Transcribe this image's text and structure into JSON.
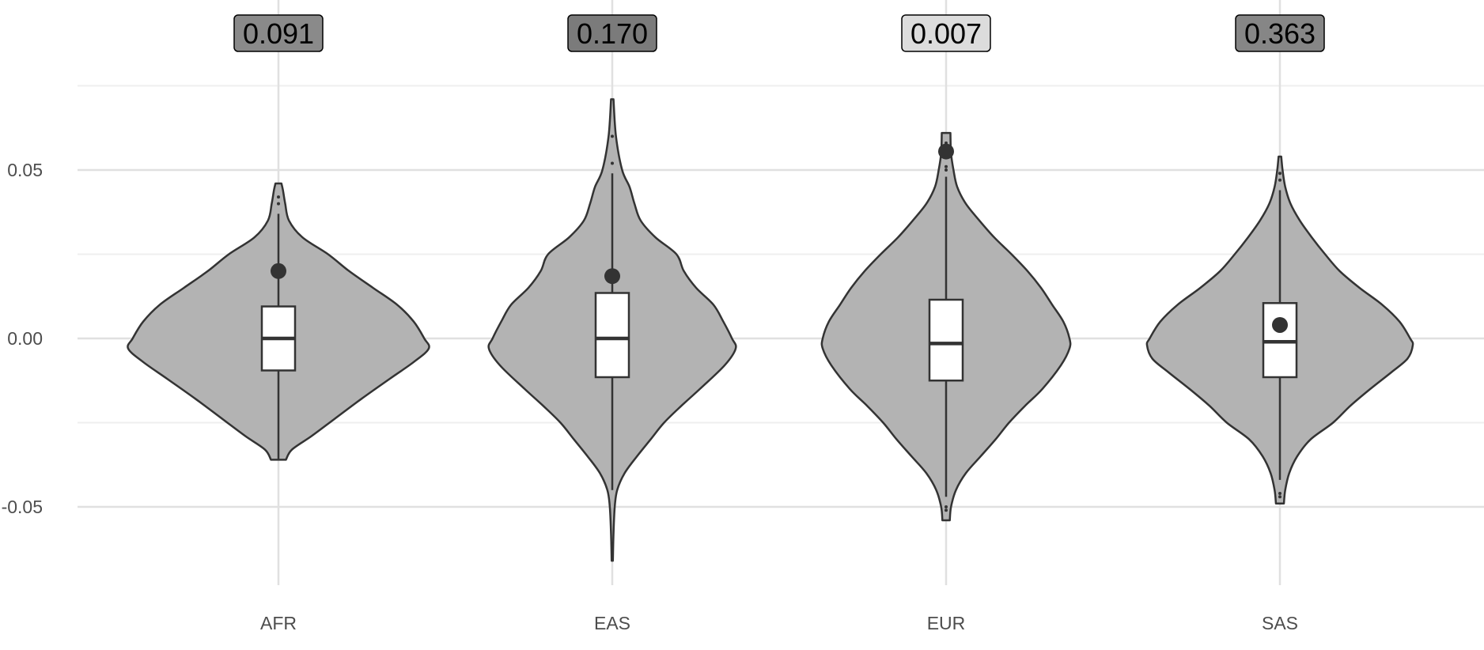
{
  "chart_data": {
    "type": "violin",
    "title": "",
    "xlabel": "",
    "ylabel": "",
    "grid": true,
    "ylim": [
      -0.074,
      0.101
    ],
    "y_ticks": [
      -0.05,
      0.0,
      0.05
    ],
    "y_tick_labels": [
      "-0.05",
      "0.00",
      "0.05"
    ],
    "categories": [
      "AFR",
      "EAS",
      "EUR",
      "SAS"
    ],
    "colors": {
      "violin_fill": "#b3b3b3",
      "outline": "#333333",
      "box_fill": "#ffffff",
      "grid_major": "#e0e0e0",
      "grid_minor": "#efefef",
      "axis_text": "#4d4d4d"
    },
    "groups": [
      {
        "name": "AFR",
        "p_value": "0.091",
        "label_fill": "#8a8a8a",
        "box": {
          "q1": -0.0095,
          "median": 0.0,
          "q3": 0.0095,
          "whisker_low": -0.036,
          "whisker_high": 0.037
        },
        "highlight_point": 0.02,
        "violin_range": [
          -0.036,
          0.046
        ],
        "density": [
          [
            0.046,
            0.02
          ],
          [
            0.044,
            0.03
          ],
          [
            0.04,
            0.045
          ],
          [
            0.035,
            0.07
          ],
          [
            0.03,
            0.16
          ],
          [
            0.025,
            0.33
          ],
          [
            0.02,
            0.47
          ],
          [
            0.015,
            0.63
          ],
          [
            0.01,
            0.79
          ],
          [
            0.005,
            0.9
          ],
          [
            0.0,
            0.97
          ],
          [
            -0.003,
            1.0
          ],
          [
            -0.007,
            0.9
          ],
          [
            -0.012,
            0.74
          ],
          [
            -0.018,
            0.55
          ],
          [
            -0.024,
            0.37
          ],
          [
            -0.029,
            0.22
          ],
          [
            -0.033,
            0.09
          ],
          [
            -0.036,
            0.05
          ]
        ],
        "outliers": [
          0.04,
          0.042
        ]
      },
      {
        "name": "EAS",
        "p_value": "0.170",
        "label_fill": "#7b7b7b",
        "box": {
          "q1": -0.0115,
          "median": 0.0,
          "q3": 0.0135,
          "whisker_low": -0.045,
          "whisker_high": 0.049
        },
        "highlight_point": 0.0185,
        "violin_range": [
          -0.066,
          0.071
        ],
        "density": [
          [
            0.071,
            0.01
          ],
          [
            0.06,
            0.03
          ],
          [
            0.05,
            0.08
          ],
          [
            0.045,
            0.14
          ],
          [
            0.04,
            0.18
          ],
          [
            0.035,
            0.23
          ],
          [
            0.03,
            0.35
          ],
          [
            0.025,
            0.52
          ],
          [
            0.02,
            0.58
          ],
          [
            0.015,
            0.68
          ],
          [
            0.01,
            0.82
          ],
          [
            0.005,
            0.9
          ],
          [
            0.0,
            0.97
          ],
          [
            -0.003,
            1.0
          ],
          [
            -0.008,
            0.91
          ],
          [
            -0.015,
            0.71
          ],
          [
            -0.02,
            0.56
          ],
          [
            -0.025,
            0.42
          ],
          [
            -0.03,
            0.31
          ],
          [
            -0.035,
            0.2
          ],
          [
            -0.04,
            0.1
          ],
          [
            -0.045,
            0.04
          ],
          [
            -0.05,
            0.02
          ],
          [
            -0.058,
            0.01
          ],
          [
            -0.066,
            0.005
          ]
        ],
        "outliers": [
          0.052,
          0.06
        ]
      },
      {
        "name": "EUR",
        "p_value": "0.007",
        "label_fill": "#dcdcdc",
        "box": {
          "q1": -0.0125,
          "median": -0.0015,
          "q3": 0.0115,
          "whisker_low": -0.047,
          "whisker_high": 0.048
        },
        "highlight_point": 0.0555,
        "violin_range": [
          -0.054,
          0.061
        ],
        "density": [
          [
            0.061,
            0.035
          ],
          [
            0.055,
            0.04
          ],
          [
            0.05,
            0.06
          ],
          [
            0.045,
            0.09
          ],
          [
            0.04,
            0.16
          ],
          [
            0.035,
            0.27
          ],
          [
            0.03,
            0.39
          ],
          [
            0.025,
            0.53
          ],
          [
            0.02,
            0.66
          ],
          [
            0.015,
            0.77
          ],
          [
            0.01,
            0.86
          ],
          [
            0.005,
            0.95
          ],
          [
            0.0,
            1.0
          ],
          [
            -0.003,
            1.0
          ],
          [
            -0.008,
            0.93
          ],
          [
            -0.015,
            0.78
          ],
          [
            -0.02,
            0.64
          ],
          [
            -0.025,
            0.51
          ],
          [
            -0.03,
            0.4
          ],
          [
            -0.035,
            0.28
          ],
          [
            -0.04,
            0.16
          ],
          [
            -0.045,
            0.08
          ],
          [
            -0.05,
            0.04
          ],
          [
            -0.054,
            0.03
          ]
        ],
        "outliers": [
          0.05,
          0.051,
          0.058,
          -0.05,
          -0.051
        ]
      },
      {
        "name": "SAS",
        "p_value": "0.363",
        "label_fill": "#868686",
        "box": {
          "q1": -0.0115,
          "median": -0.001,
          "q3": 0.0105,
          "whisker_low": -0.042,
          "whisker_high": 0.044
        },
        "highlight_point": 0.004,
        "violin_range": [
          -0.049,
          0.054
        ],
        "density": [
          [
            0.054,
            0.01
          ],
          [
            0.05,
            0.02
          ],
          [
            0.045,
            0.04
          ],
          [
            0.04,
            0.08
          ],
          [
            0.035,
            0.15
          ],
          [
            0.03,
            0.24
          ],
          [
            0.025,
            0.34
          ],
          [
            0.02,
            0.45
          ],
          [
            0.015,
            0.6
          ],
          [
            0.01,
            0.77
          ],
          [
            0.005,
            0.9
          ],
          [
            0.0,
            0.98
          ],
          [
            -0.002,
            1.0
          ],
          [
            -0.006,
            0.96
          ],
          [
            -0.01,
            0.84
          ],
          [
            -0.015,
            0.68
          ],
          [
            -0.02,
            0.53
          ],
          [
            -0.025,
            0.4
          ],
          [
            -0.03,
            0.23
          ],
          [
            -0.035,
            0.13
          ],
          [
            -0.04,
            0.07
          ],
          [
            -0.045,
            0.04
          ],
          [
            -0.049,
            0.03
          ]
        ],
        "outliers": [
          0.047,
          0.049,
          -0.046,
          -0.047
        ]
      }
    ]
  }
}
